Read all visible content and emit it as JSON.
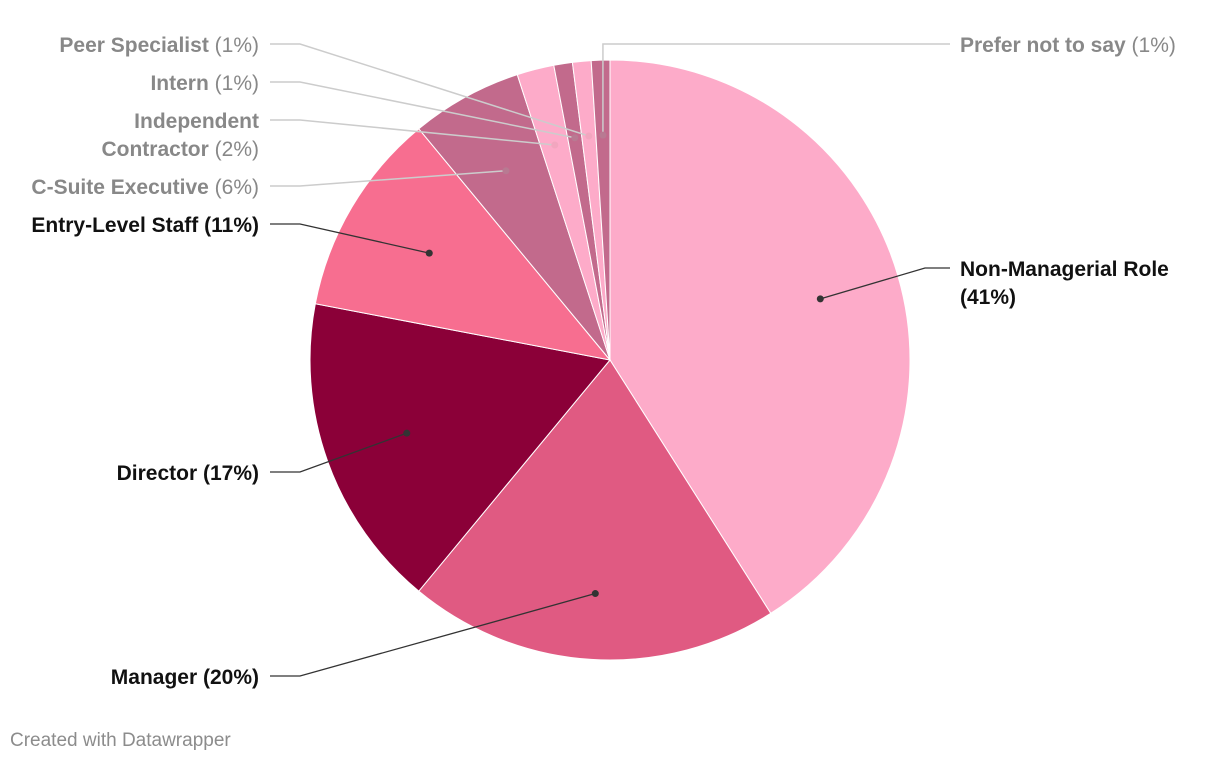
{
  "chart_data": {
    "type": "pie",
    "slices": [
      {
        "label": "Non-Managerial Role",
        "pct_label": "(41%)",
        "value": 41,
        "color": "#fdabc9",
        "emphasis": true
      },
      {
        "label": "Manager",
        "pct_label": "(20%)",
        "value": 20,
        "color": "#e05a82",
        "emphasis": true
      },
      {
        "label": "Director",
        "pct_label": "(17%)",
        "value": 17,
        "color": "#8b0038",
        "emphasis": true
      },
      {
        "label": "Entry-Level Staff",
        "pct_label": "(11%)",
        "value": 11,
        "color": "#f76e90",
        "emphasis": true
      },
      {
        "label": "C-Suite Executive",
        "pct_label": "(6%)",
        "value": 6,
        "color": "#c26a8c",
        "emphasis": false
      },
      {
        "label": "Independent Contractor",
        "pct_label": "(2%)",
        "value": 2,
        "color": "#fdabc9",
        "emphasis": false
      },
      {
        "label": "Intern",
        "pct_label": "(1%)",
        "value": 1,
        "color": "#c26a8c",
        "emphasis": false
      },
      {
        "label": "Peer Specialist",
        "pct_label": "(1%)",
        "value": 1,
        "color": "#fdabc9",
        "emphasis": false
      },
      {
        "label": "Prefer not to say",
        "pct_label": "(1%)",
        "value": 1,
        "color": "#c26a8c",
        "emphasis": false
      }
    ]
  },
  "footer": {
    "credit": "Created with Datawrapper"
  }
}
